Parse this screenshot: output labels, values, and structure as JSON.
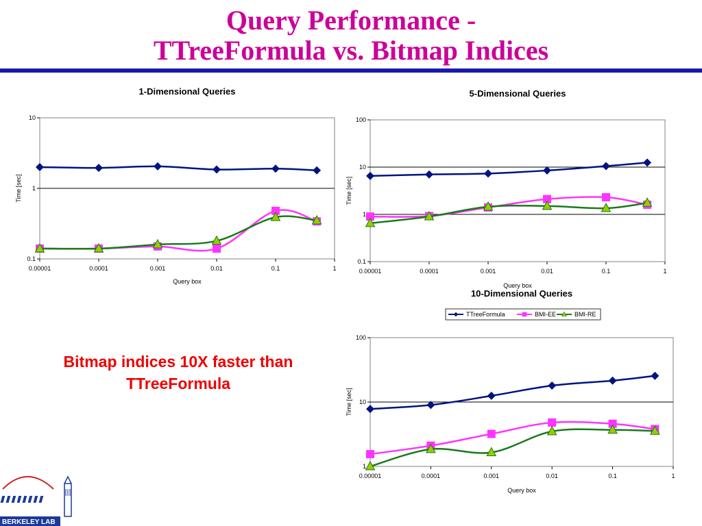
{
  "slide": {
    "title_line1": "Query Performance -",
    "title_line2": "TTreeFormula vs. Bitmap Indices",
    "callout_line1": "Bitmap indices 10X faster than",
    "callout_line2": "TTreeFormula",
    "logo_text": "BERKELEY LAB"
  },
  "colors": {
    "title": "#cc0099",
    "rule": "#1a1aaa",
    "callout": "#ee0000",
    "TTreeFormula": "#00137f",
    "BMI-EE": "#ff33ff",
    "BMI-RE": "#1a7a1a",
    "marker_re_fill": "#99cc00"
  },
  "chart_data": [
    {
      "type": "line",
      "title": "1-Dimensional Queries",
      "xlabel": "Query box",
      "ylabel": "Time [sec]",
      "xscale": "log",
      "yscale": "log",
      "xlim": [
        1e-05,
        1
      ],
      "ylim": [
        0.1,
        10
      ],
      "xticks": [
        "0.00001",
        "0.0001",
        "0.001",
        "0.01",
        "0.1",
        "1"
      ],
      "yticks": [
        "0.1",
        "1",
        "10"
      ],
      "gridlines": [
        1
      ],
      "legend": "none",
      "x": [
        1e-05,
        0.0001,
        0.001,
        0.01,
        0.1,
        0.5
      ],
      "series": [
        {
          "name": "TTreeFormula",
          "values": [
            2.0,
            1.95,
            2.05,
            1.85,
            1.9,
            1.8
          ]
        },
        {
          "name": "BMI-EE",
          "values": [
            0.14,
            0.14,
            0.15,
            0.14,
            0.48,
            0.34
          ]
        },
        {
          "name": "BMI-RE",
          "values": [
            0.14,
            0.14,
            0.16,
            0.18,
            0.39,
            0.35
          ]
        }
      ]
    },
    {
      "type": "line",
      "title": "5-Dimensional Queries",
      "xlabel": "Query box",
      "ylabel": "Time [sec]",
      "xscale": "log",
      "yscale": "log",
      "xlim": [
        1e-05,
        1
      ],
      "ylim": [
        0.1,
        100
      ],
      "xticks": [
        "0.00001",
        "0.0001",
        "0.001",
        "0.01",
        "0.1",
        "1"
      ],
      "yticks": [
        "0.1",
        "1",
        "10",
        "100"
      ],
      "gridlines": [
        1,
        10
      ],
      "legend": "none",
      "x": [
        1e-05,
        0.0001,
        0.001,
        0.01,
        0.1,
        0.5
      ],
      "series": [
        {
          "name": "TTreeFormula",
          "values": [
            6.5,
            7.0,
            7.3,
            8.5,
            10.5,
            12.5
          ]
        },
        {
          "name": "BMI-EE",
          "values": [
            0.9,
            0.92,
            1.4,
            2.1,
            2.3,
            1.6
          ]
        },
        {
          "name": "BMI-RE",
          "values": [
            0.65,
            0.9,
            1.45,
            1.5,
            1.35,
            1.75
          ]
        }
      ]
    },
    {
      "type": "line",
      "title": "10-Dimensional Queries",
      "xlabel": "Query box",
      "ylabel": "Time [sec]",
      "xscale": "log",
      "yscale": "log",
      "xlim": [
        1e-05,
        1
      ],
      "ylim": [
        1,
        100
      ],
      "xticks": [
        "0.00001",
        "0.0001",
        "0.001",
        "0.01",
        "0.1",
        "1"
      ],
      "yticks": [
        "1",
        "10",
        "100"
      ],
      "gridlines": [
        10
      ],
      "legend": "top",
      "legend_labels": [
        "TTreeFormula",
        "BMI-EE",
        "BMI-RE"
      ],
      "x": [
        1e-05,
        0.0001,
        0.001,
        0.01,
        0.1,
        0.5
      ],
      "series": [
        {
          "name": "TTreeFormula",
          "values": [
            7.8,
            9.0,
            12.5,
            18.0,
            21.5,
            25.5
          ]
        },
        {
          "name": "BMI-EE",
          "values": [
            1.55,
            2.1,
            3.2,
            4.8,
            4.6,
            3.8
          ]
        },
        {
          "name": "BMI-RE",
          "values": [
            1.0,
            1.85,
            1.65,
            3.5,
            3.7,
            3.55
          ]
        }
      ]
    }
  ]
}
